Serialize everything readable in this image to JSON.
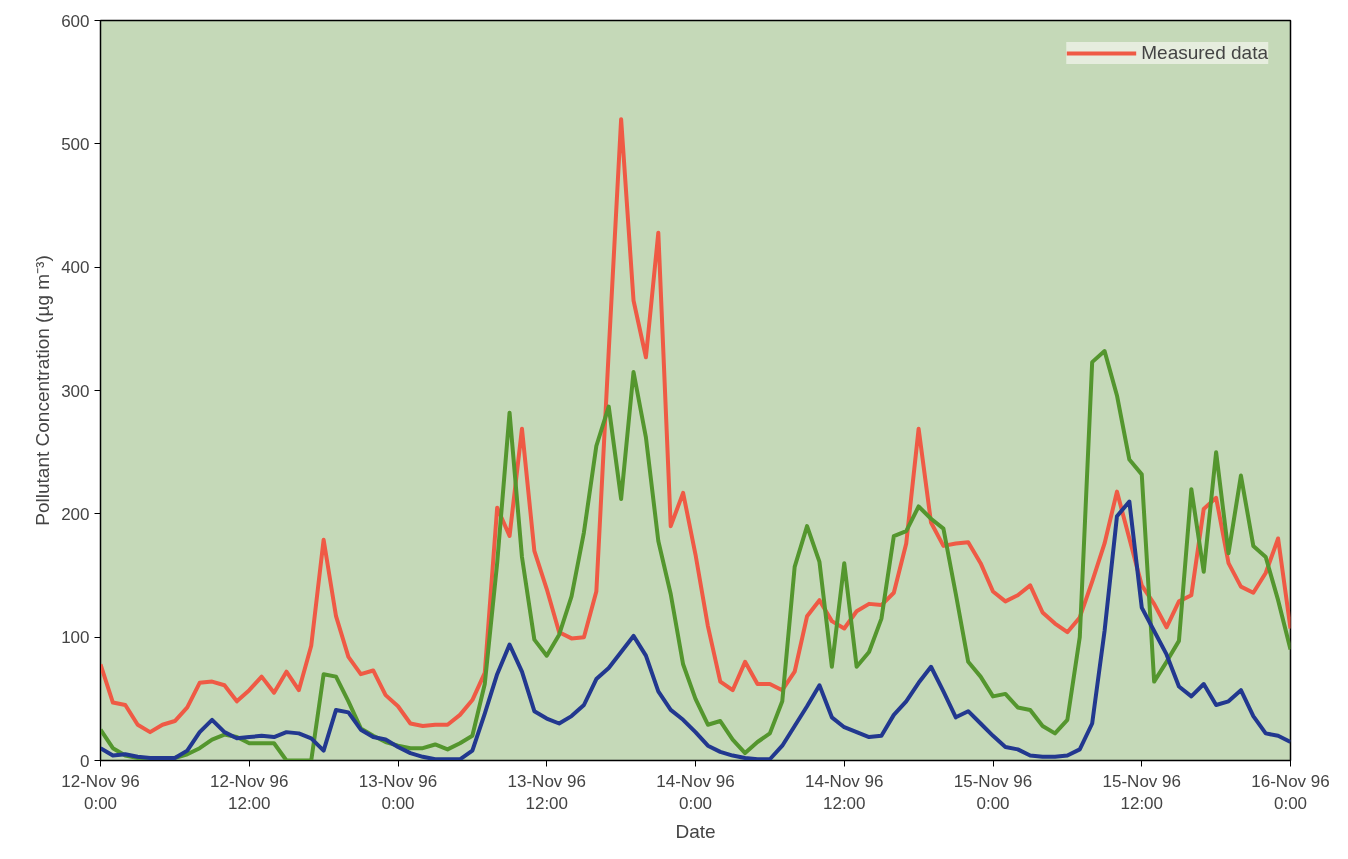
{
  "chart_data": {
    "type": "line",
    "xlabel": "Date",
    "ylabel": "Pollutant Concentration (µg m⁻³)",
    "x": [
      "1996-11-12T00:00",
      "1996-11-12T01:00",
      "1996-11-12T02:00",
      "1996-11-12T03:00",
      "1996-11-12T04:00",
      "1996-11-12T05:00",
      "1996-11-12T06:00",
      "1996-11-12T07:00",
      "1996-11-12T08:00",
      "1996-11-12T09:00",
      "1996-11-12T10:00",
      "1996-11-12T11:00",
      "1996-11-12T12:00",
      "1996-11-12T13:00",
      "1996-11-12T14:00",
      "1996-11-12T15:00",
      "1996-11-12T16:00",
      "1996-11-12T17:00",
      "1996-11-12T18:00",
      "1996-11-12T19:00",
      "1996-11-12T20:00",
      "1996-11-12T21:00",
      "1996-11-12T22:00",
      "1996-11-12T23:00",
      "1996-11-13T00:00",
      "1996-11-13T01:00",
      "1996-11-13T02:00",
      "1996-11-13T03:00",
      "1996-11-13T04:00",
      "1996-11-13T05:00",
      "1996-11-13T06:00",
      "1996-11-13T07:00",
      "1996-11-13T08:00",
      "1996-11-13T09:00",
      "1996-11-13T10:00",
      "1996-11-13T11:00",
      "1996-11-13T12:00",
      "1996-11-13T13:00",
      "1996-11-13T14:00",
      "1996-11-13T15:00",
      "1996-11-13T16:00",
      "1996-11-13T17:00",
      "1996-11-13T18:00",
      "1996-11-13T19:00",
      "1996-11-13T20:00",
      "1996-11-13T21:00",
      "1996-11-13T22:00",
      "1996-11-13T23:00",
      "1996-11-14T00:00",
      "1996-11-14T01:00",
      "1996-11-14T02:00",
      "1996-11-14T03:00",
      "1996-11-14T04:00",
      "1996-11-14T05:00",
      "1996-11-14T06:00",
      "1996-11-14T07:00",
      "1996-11-14T08:00",
      "1996-11-14T09:00",
      "1996-11-14T10:00",
      "1996-11-14T11:00",
      "1996-11-14T12:00",
      "1996-11-14T13:00",
      "1996-11-14T14:00",
      "1996-11-14T15:00",
      "1996-11-14T16:00",
      "1996-11-14T17:00",
      "1996-11-14T18:00",
      "1996-11-14T19:00",
      "1996-11-14T20:00",
      "1996-11-14T21:00",
      "1996-11-14T22:00",
      "1996-11-14T23:00",
      "1996-11-15T00:00",
      "1996-11-15T01:00",
      "1996-11-15T02:00",
      "1996-11-15T03:00",
      "1996-11-15T04:00",
      "1996-11-15T05:00",
      "1996-11-15T06:00",
      "1996-11-15T07:00",
      "1996-11-15T08:00",
      "1996-11-15T09:00",
      "1996-11-15T10:00",
      "1996-11-15T11:00",
      "1996-11-15T12:00",
      "1996-11-15T13:00",
      "1996-11-15T14:00",
      "1996-11-15T15:00",
      "1996-11-15T16:00",
      "1996-11-15T17:00",
      "1996-11-15T18:00",
      "1996-11-15T19:00",
      "1996-11-15T20:00",
      "1996-11-15T21:00",
      "1996-11-15T22:00",
      "1996-11-15T23:00",
      "1996-11-16T00:00"
    ],
    "xlim": [
      "1996-11-12T00:00",
      "1996-11-16T00:00"
    ],
    "ylim": [
      0,
      600
    ],
    "xticks": [
      {
        "value": "1996-11-12T00:00",
        "label": "12-Nov 96\n0:00"
      },
      {
        "value": "1996-11-12T12:00",
        "label": "12-Nov 96\n12:00"
      },
      {
        "value": "1996-11-13T00:00",
        "label": "13-Nov 96\n0:00"
      },
      {
        "value": "1996-11-13T12:00",
        "label": "13-Nov 96\n12:00"
      },
      {
        "value": "1996-11-14T00:00",
        "label": "14-Nov 96\n0:00"
      },
      {
        "value": "1996-11-14T12:00",
        "label": "14-Nov 96\n12:00"
      },
      {
        "value": "1996-11-15T00:00",
        "label": "15-Nov 96\n0:00"
      },
      {
        "value": "1996-11-15T12:00",
        "label": "15-Nov 96\n12:00"
      },
      {
        "value": "1996-11-16T00:00",
        "label": "16-Nov 96\n0:00"
      }
    ],
    "yticks": [
      0,
      100,
      200,
      300,
      400,
      500,
      600
    ],
    "grid": false,
    "legend": "top right",
    "line_style": "solid",
    "series": [
      {
        "name": "Measured data",
        "color": "#ef5a45",
        "values": [
          78,
          47,
          45,
          29,
          23,
          29,
          32,
          43,
          63,
          64,
          61,
          48,
          57,
          68,
          55,
          72,
          57,
          93,
          179,
          117,
          84,
          70,
          73,
          53,
          44,
          30,
          28,
          29,
          29,
          37,
          49,
          71,
          205,
          182,
          269,
          170,
          139,
          104,
          99,
          100,
          137,
          332,
          520,
          373,
          327,
          428,
          190,
          217,
          167,
          109,
          64,
          57,
          80,
          62,
          62,
          57,
          72,
          117,
          130,
          113,
          107,
          121,
          127,
          126,
          136,
          176,
          269,
          193,
          174,
          176,
          177,
          160,
          137,
          129,
          134,
          142,
          120,
          111,
          104,
          116,
          145,
          176,
          218,
          180,
          142,
          127,
          108,
          129,
          134,
          204,
          213,
          160,
          141,
          136,
          152,
          180,
          107
        ]
      },
      {
        "color": "#54962e",
        "values": [
          25,
          10,
          4,
          2,
          1,
          1,
          2,
          5,
          10,
          17,
          21,
          19,
          14,
          14,
          14,
          0,
          0,
          0,
          70,
          68,
          48,
          26,
          20,
          15,
          12,
          10,
          10,
          13,
          9,
          14,
          20,
          62,
          160,
          282,
          165,
          98,
          85,
          102,
          133,
          185,
          255,
          287,
          212,
          315,
          262,
          178,
          135,
          78,
          50,
          29,
          32,
          17,
          6,
          15,
          22,
          48,
          157,
          190,
          161,
          76,
          160,
          76,
          88,
          115,
          182,
          186,
          206,
          196,
          188,
          135,
          80,
          68,
          52,
          54,
          43,
          41,
          28,
          22,
          33,
          100,
          323,
          332,
          296,
          244,
          232,
          64,
          80,
          97,
          220,
          153,
          250,
          168,
          231,
          174,
          165,
          130,
          90
        ]
      },
      {
        "color": "#22388f",
        "values": [
          10,
          4,
          5,
          3,
          2,
          2,
          2,
          8,
          23,
          33,
          23,
          18,
          19,
          20,
          19,
          23,
          22,
          18,
          8,
          41,
          39,
          25,
          19,
          17,
          11,
          6,
          3,
          1,
          1,
          1,
          8,
          38,
          70,
          94,
          72,
          40,
          34,
          30,
          36,
          45,
          66,
          75,
          88,
          101,
          85,
          56,
          41,
          33,
          23,
          12,
          7,
          4,
          2,
          1,
          1,
          12,
          28,
          44,
          61,
          35,
          27,
          23,
          19,
          20,
          37,
          48,
          63,
          76,
          56,
          35,
          40,
          30,
          20,
          11,
          9,
          4,
          3,
          3,
          4,
          9,
          30,
          105,
          198,
          210,
          124,
          105,
          86,
          60,
          52,
          62,
          45,
          48,
          57,
          36,
          22,
          20,
          15
        ]
      }
    ]
  }
}
